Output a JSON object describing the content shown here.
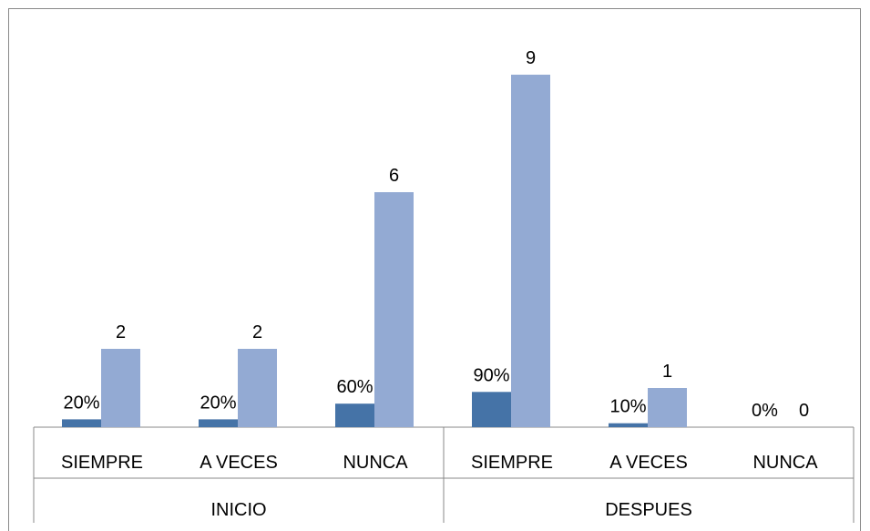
{
  "chart_data": {
    "type": "bar",
    "groups": [
      {
        "label": "INICIO",
        "categories": [
          "SIEMPRE",
          "A VECES",
          "NUNCA"
        ]
      },
      {
        "label": "DESPUES",
        "categories": [
          "SIEMPRE",
          "A VECES",
          "NUNCA"
        ]
      }
    ],
    "series": [
      {
        "color": "#4573a7",
        "values": [
          0.2,
          0.2,
          0.6,
          0.9,
          0.1,
          0.0
        ],
        "labels": [
          "20%",
          "20%",
          "60%",
          "90%",
          "10%",
          "0%"
        ]
      },
      {
        "color": "#93aad3",
        "values": [
          2,
          2,
          6,
          9,
          1,
          0
        ],
        "labels": [
          "2",
          "2",
          "6",
          "9",
          "1",
          "0"
        ]
      }
    ],
    "ylim": [
      0,
      10
    ],
    "grid": false,
    "legend": false
  }
}
